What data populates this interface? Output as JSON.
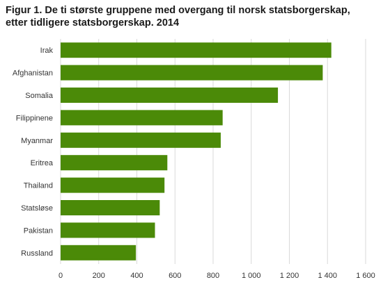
{
  "chart_data": {
    "type": "bar",
    "orientation": "horizontal",
    "title_line1": "Figur 1. De ti største gruppene med overgang til norsk statsborgerskap,",
    "title_line2": "etter tidligere statsborgerskap. 2014",
    "xlabel": "",
    "ylabel": "",
    "categories": [
      "Irak",
      "Afghanistan",
      "Somalia",
      "Filippinene",
      "Myanmar",
      "Eritrea",
      "Thailand",
      "Statsløse",
      "Pakistan",
      "Russland"
    ],
    "values": [
      1420,
      1375,
      1140,
      850,
      840,
      560,
      545,
      520,
      495,
      395
    ],
    "xlim": [
      0,
      1600
    ],
    "xticks": [
      0,
      200,
      400,
      600,
      800,
      1000,
      1200,
      1400,
      1600
    ],
    "xtick_labels": [
      "0",
      "200",
      "400",
      "600",
      "800",
      "1 000",
      "1 200",
      "1 400",
      "1 600"
    ],
    "grid": "vertical",
    "bar_color": "#4b8a08",
    "grid_color": "#d9d9d9"
  }
}
